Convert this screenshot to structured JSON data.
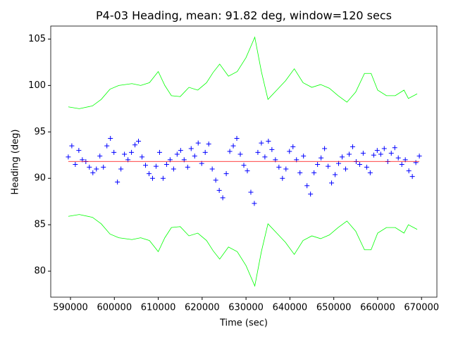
{
  "chart_data": {
    "type": "scatter",
    "title": "P4-03 Heading, mean: 91.82 deg, window=120 secs",
    "xlabel": "Time (sec)",
    "ylabel": "Heading (deg)",
    "xlim": [
      585500,
      673500
    ],
    "ylim": [
      77.2,
      106.4
    ],
    "xticks": [
      590000,
      600000,
      610000,
      620000,
      630000,
      640000,
      650000,
      660000,
      670000
    ],
    "yticks": [
      80,
      85,
      90,
      95,
      100,
      105
    ],
    "series": [
      {
        "style": "plus",
        "color": "#0000ff",
        "x": [
          589500,
          590300,
          591100,
          591900,
          592700,
          593500,
          594300,
          595100,
          595900,
          596700,
          597500,
          598300,
          599100,
          599900,
          600700,
          601500,
          602300,
          603100,
          603900,
          604700,
          605500,
          606300,
          607100,
          607900,
          608700,
          609500,
          610300,
          611100,
          611900,
          612700,
          613500,
          614300,
          615100,
          615900,
          616700,
          617500,
          618300,
          619100,
          619900,
          620700,
          621500,
          622300,
          623100,
          623900,
          624700,
          625500,
          626300,
          627100,
          627900,
          628700,
          629500,
          630300,
          631100,
          631900,
          632700,
          633500,
          634300,
          635100,
          635900,
          636700,
          637500,
          638300,
          639100,
          639900,
          640700,
          641500,
          642300,
          643100,
          643900,
          644700,
          645500,
          646300,
          647100,
          647900,
          648700,
          649500,
          650300,
          651100,
          651900,
          652700,
          653500,
          654300,
          655100,
          655900,
          656700,
          657500,
          658300,
          659100,
          659900,
          660700,
          661500,
          662300,
          663100,
          663900,
          664700,
          665500,
          666300,
          667100,
          667900,
          668700,
          669500
        ],
        "values": [
          92.3,
          93.5,
          91.5,
          93.0,
          92.0,
          91.8,
          91.2,
          90.6,
          91.0,
          92.4,
          91.2,
          93.5,
          94.3,
          92.8,
          89.6,
          91.0,
          92.6,
          92.0,
          92.8,
          93.6,
          94.0,
          92.3,
          91.4,
          90.5,
          90.0,
          91.3,
          92.8,
          90.0,
          91.5,
          92.0,
          91.0,
          92.6,
          93.0,
          92.0,
          91.2,
          93.2,
          92.4,
          93.8,
          91.6,
          92.8,
          93.7,
          91.0,
          89.8,
          88.7,
          87.9,
          90.5,
          92.9,
          93.5,
          94.3,
          92.6,
          91.4,
          90.8,
          88.5,
          87.3,
          92.8,
          93.8,
          92.3,
          94.0,
          93.1,
          92.0,
          91.2,
          90.0,
          91.0,
          92.9,
          93.4,
          92.0,
          90.6,
          92.4,
          89.2,
          88.3,
          90.6,
          91.5,
          92.2,
          93.2,
          91.3,
          89.5,
          90.4,
          91.6,
          92.3,
          91.0,
          92.6,
          93.4,
          91.8,
          91.5,
          92.7,
          91.2,
          90.6,
          92.5,
          93.0,
          92.6,
          93.2,
          91.8,
          92.7,
          93.3,
          92.2,
          91.5,
          92.0,
          90.8,
          90.2,
          91.7,
          92.4
        ]
      },
      {
        "style": "line",
        "color": "#ff0000",
        "x": [
          589500,
          669500
        ],
        "values": [
          91.82,
          91.82
        ]
      },
      {
        "style": "line",
        "color": "#00ff00",
        "x": [
          589500,
          592000,
          595000,
          597000,
          599000,
          601000,
          604000,
          606000,
          608000,
          610000,
          611500,
          613000,
          615000,
          617000,
          619000,
          621000,
          622500,
          624000,
          626000,
          628000,
          630000,
          632000,
          633500,
          635000,
          637000,
          639000,
          641000,
          643000,
          645000,
          647000,
          649000,
          651000,
          653000,
          655000,
          657000,
          658500,
          660000,
          662000,
          664000,
          666000,
          667000,
          669000
        ],
        "values": [
          97.7,
          97.5,
          97.8,
          98.5,
          99.6,
          100.0,
          100.2,
          100.0,
          100.3,
          101.5,
          100.0,
          98.9,
          98.8,
          99.8,
          99.5,
          100.3,
          101.4,
          102.3,
          101.0,
          101.5,
          103.0,
          105.2,
          101.5,
          98.5,
          99.5,
          100.5,
          101.8,
          100.3,
          99.8,
          100.1,
          99.7,
          98.9,
          98.2,
          99.3,
          101.3,
          101.3,
          99.5,
          98.9,
          98.9,
          99.5,
          98.6,
          99.1
        ]
      },
      {
        "style": "line",
        "color": "#00ff00",
        "x": [
          589500,
          592000,
          595000,
          597000,
          599000,
          601000,
          604000,
          606000,
          608000,
          610000,
          611500,
          613000,
          615000,
          617000,
          619000,
          621000,
          622500,
          624000,
          626000,
          628000,
          630000,
          632000,
          633500,
          635000,
          637000,
          639000,
          641000,
          643000,
          645000,
          647000,
          649000,
          651000,
          653000,
          655000,
          657000,
          658500,
          660000,
          662000,
          664000,
          666000,
          667000,
          669000
        ],
        "values": [
          85.9,
          86.1,
          85.8,
          85.1,
          84.0,
          83.6,
          83.4,
          83.6,
          83.3,
          82.1,
          83.6,
          84.7,
          84.8,
          83.8,
          84.1,
          83.3,
          82.2,
          81.3,
          82.6,
          82.1,
          80.6,
          78.4,
          82.1,
          85.1,
          84.1,
          83.1,
          81.8,
          83.3,
          83.8,
          83.5,
          83.9,
          84.7,
          85.4,
          84.3,
          82.3,
          82.3,
          84.1,
          84.7,
          84.7,
          84.1,
          85.0,
          84.5
        ]
      }
    ]
  }
}
